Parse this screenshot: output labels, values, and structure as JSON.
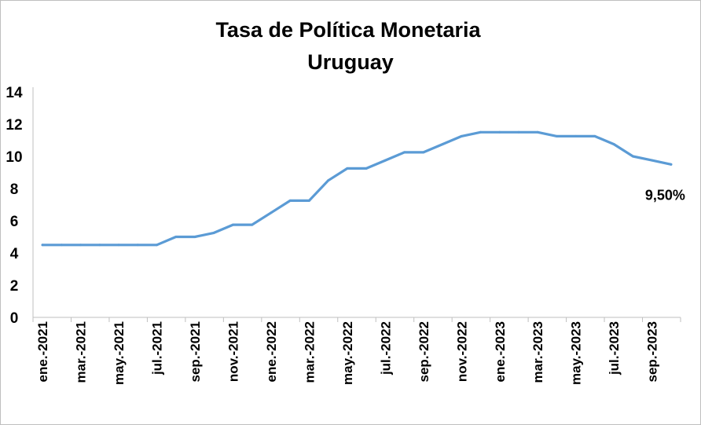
{
  "chart_data": {
    "type": "line",
    "title": "Tasa de Política Monetaria",
    "subtitle": "Uruguay",
    "xlabel": "",
    "ylabel": "",
    "ylim": [
      0,
      14
    ],
    "yticks": [
      "0",
      "2",
      "4",
      "6",
      "8",
      "10",
      "12",
      "14"
    ],
    "grid": false,
    "legend": "none",
    "line_color": "#5b9bd5",
    "categories": [
      "ene.-2021",
      "feb.-2021",
      "mar.-2021",
      "abr.-2021",
      "may.-2021",
      "jun.-2021",
      "jul.-2021",
      "ago.-2021",
      "sep.-2021",
      "oct.-2021",
      "nov.-2021",
      "dic.-2021",
      "ene.-2022",
      "feb.-2022",
      "mar.-2022",
      "abr.-2022",
      "may.-2022",
      "jun.-2022",
      "jul.-2022",
      "ago.-2022",
      "sep.-2022",
      "oct.-2022",
      "nov.-2022",
      "dic.-2022",
      "ene.-2023",
      "feb.-2023",
      "mar.-2023",
      "abr.-2023",
      "may.-2023",
      "jun.-2023",
      "jul.-2023",
      "ago.-2023",
      "sep.-2023",
      "oct.-2023"
    ],
    "x_tick_labels": [
      "ene.-2021",
      "mar.-2021",
      "may.-2021",
      "jul.-2021",
      "sep.-2021",
      "nov.-2021",
      "ene.-2022",
      "mar.-2022",
      "may.-2022",
      "jul.-2022",
      "sep.-2022",
      "nov.-2022",
      "ene.-2023",
      "mar.-2023",
      "may.-2023",
      "jul.-2023",
      "sep.-2023"
    ],
    "series": [
      {
        "values": [
          4.5,
          4.5,
          4.5,
          4.5,
          4.5,
          4.5,
          4.5,
          5.0,
          5.0,
          5.25,
          5.75,
          5.75,
          6.5,
          7.25,
          7.25,
          8.5,
          9.25,
          9.25,
          9.75,
          10.25,
          10.25,
          10.75,
          11.25,
          11.5,
          11.5,
          11.5,
          11.5,
          11.25,
          11.25,
          11.25,
          10.75,
          10.0,
          9.75,
          9.5
        ]
      }
    ],
    "annotations": [
      {
        "text": "9,50%",
        "category": "oct.-2023",
        "value": 9.5
      }
    ]
  }
}
